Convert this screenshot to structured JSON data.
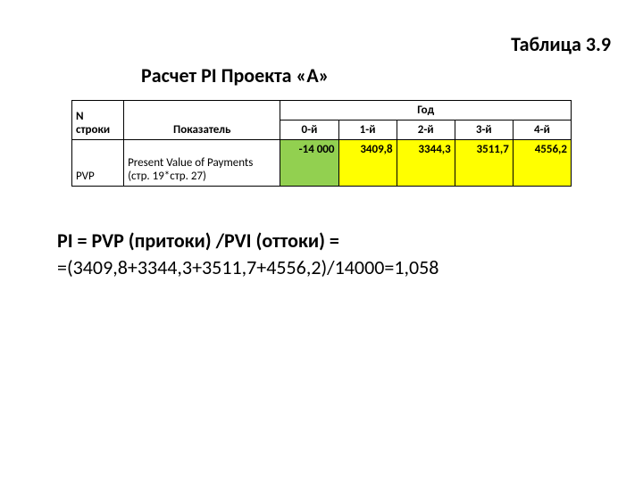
{
  "caption": "Таблица 3.9",
  "subtitle": "Расчет PI  Проекта «А»",
  "table": {
    "header": {
      "n_label": "N строки",
      "indicator_label": "Показатель",
      "year_group": "Год",
      "years": [
        "0-й",
        "1-й",
        "2-й",
        "3-й",
        "4-й"
      ]
    },
    "row": {
      "code": "PVP",
      "indicator": "Present Value of Payments (стр. 19*стр. 27)",
      "values": [
        "-14 000",
        "3409,8",
        "3344,3",
        "3511,7",
        "4556,2"
      ]
    },
    "cell_colors": {
      "year0_bg": "#92d050",
      "year_other_bg": "#ffff00"
    },
    "border_color": "#000000",
    "header_bg": "#ffffff"
  },
  "formula": {
    "line1": "PI = PVP (притоки) /PVI (оттоки) =",
    "line2": "=(3409,8+3344,3+3511,7+4556,2)/14000=1,058"
  }
}
